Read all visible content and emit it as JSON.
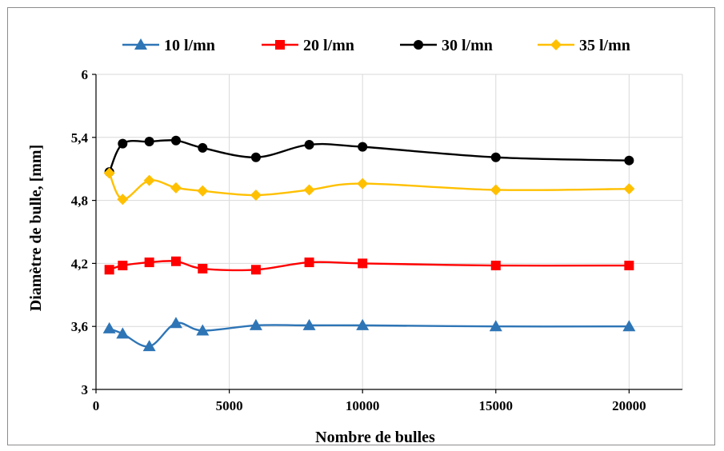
{
  "chart_data": {
    "type": "line",
    "xlabel": "Nombre de bulles",
    "ylabel": "Diamètre de bulle, [mm]",
    "xlim": [
      0,
      22000
    ],
    "ylim": [
      3,
      6
    ],
    "x_ticks": [
      "0",
      "5000",
      "10000",
      "15000",
      "20000"
    ],
    "x_tick_values": [
      0,
      5000,
      10000,
      15000,
      20000
    ],
    "y_ticks": [
      "3",
      "3,6",
      "4,2",
      "4,8",
      "5,4",
      "6"
    ],
    "y_tick_values": [
      3,
      3.6,
      4.2,
      4.8,
      5.4,
      6
    ],
    "grid": "vertical and horizontal",
    "legend_position": "top",
    "x": [
      500,
      1000,
      2000,
      3000,
      4000,
      6000,
      8000,
      10000,
      15000,
      20000
    ],
    "series": [
      {
        "name": "10 l/mn",
        "color": "#2e75b6",
        "marker": "triangle",
        "values": [
          3.58,
          3.53,
          3.41,
          3.63,
          3.56,
          3.61,
          3.61,
          3.61,
          3.6,
          3.6
        ]
      },
      {
        "name": "20 l/mn",
        "color": "#ff0000",
        "marker": "square",
        "values": [
          4.14,
          4.18,
          4.21,
          4.22,
          4.15,
          4.14,
          4.21,
          4.2,
          4.18,
          4.18
        ]
      },
      {
        "name": "30 l/mn",
        "color": "#000000",
        "marker": "circle",
        "values": [
          5.07,
          5.34,
          5.36,
          5.37,
          5.3,
          5.21,
          5.33,
          5.31,
          5.21,
          5.18
        ]
      },
      {
        "name": "35 l/mn",
        "color": "#ffc000",
        "marker": "diamond",
        "values": [
          5.06,
          4.81,
          4.99,
          4.92,
          4.89,
          4.85,
          4.9,
          4.96,
          4.9,
          4.91
        ]
      }
    ]
  }
}
